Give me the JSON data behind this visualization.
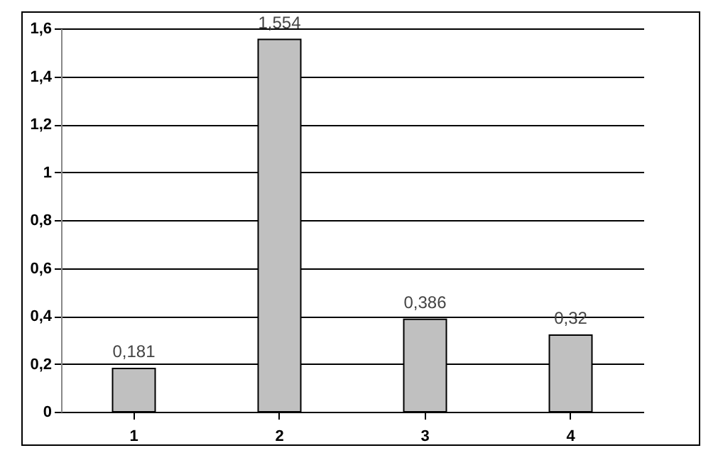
{
  "chart_data": {
    "type": "bar",
    "categories": [
      "1",
      "2",
      "3",
      "4"
    ],
    "values": [
      0.181,
      1.554,
      0.386,
      0.32
    ],
    "color": "#c0c0c0",
    "value_labels": [
      "0,181",
      "1,554",
      "0,386",
      "0,32"
    ],
    "ylim": [
      0,
      1.6
    ],
    "yticks": [
      0,
      {
        "value": 0.2,
        "label": "0,2"
      },
      {
        "value": 0.4,
        "label": "0,4"
      },
      {
        "value": 0.6,
        "label": "0,6"
      },
      {
        "value": 0.8,
        "label": "0,8"
      },
      1,
      {
        "value": 1.2,
        "label": "1,2"
      },
      {
        "value": 1.4,
        "label": "1,4"
      },
      {
        "value": 1.6,
        "label": "1,6"
      }
    ],
    "grid": "y"
  }
}
